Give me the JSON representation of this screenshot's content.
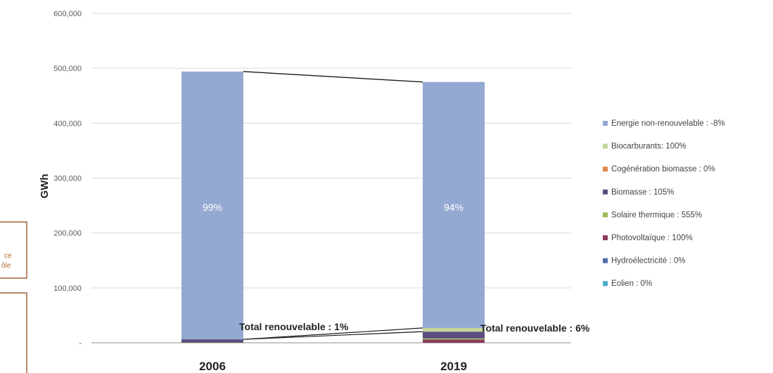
{
  "chart_data": {
    "type": "bar",
    "stacked": true,
    "ylabel": "GWh",
    "ylim": [
      0,
      600000
    ],
    "yticks": [
      0,
      100000,
      200000,
      300000,
      400000,
      500000,
      600000
    ],
    "ytick_labels": [
      "-",
      "100,000",
      "200,000",
      "300,000",
      "400,000",
      "500,000",
      "600,000"
    ],
    "grid": true,
    "legend_position": "right",
    "categories": [
      "2006",
      "2019"
    ],
    "series": [
      {
        "name": "Eolien : 0%",
        "color": "#4BACC6",
        "values": [
          0,
          0
        ]
      },
      {
        "name": "Hydroélectricité : 0%",
        "color": "#4F6BA6",
        "values": [
          0,
          0
        ]
      },
      {
        "name": "Photovoltaïque : 100%",
        "color": "#8B3A5E",
        "values": [
          0,
          6000
        ]
      },
      {
        "name": "Solaire thermique : 555%",
        "color": "#9BBB59",
        "values": [
          300,
          2000
        ]
      },
      {
        "name": "Biomasse : 105%",
        "color": "#5A4D80",
        "values": [
          6000,
          12300
        ]
      },
      {
        "name": "Cogénération biomasse : 0%",
        "color": "#E0884A",
        "values": [
          0,
          0
        ]
      },
      {
        "name": "Biocarburants: 100%",
        "color": "#C3D69B",
        "values": [
          0,
          6700
        ]
      },
      {
        "name": "Energie non-renouvelable : -8%",
        "color": "#94A9D2",
        "values": [
          487700,
          448000
        ]
      }
    ],
    "bar_labels": [
      "99%",
      "94%"
    ],
    "annotations": [
      "Total renouvelable : 1%",
      "Total renouvelable : 6%"
    ],
    "side_text": [
      "ce",
      "ôle"
    ]
  }
}
